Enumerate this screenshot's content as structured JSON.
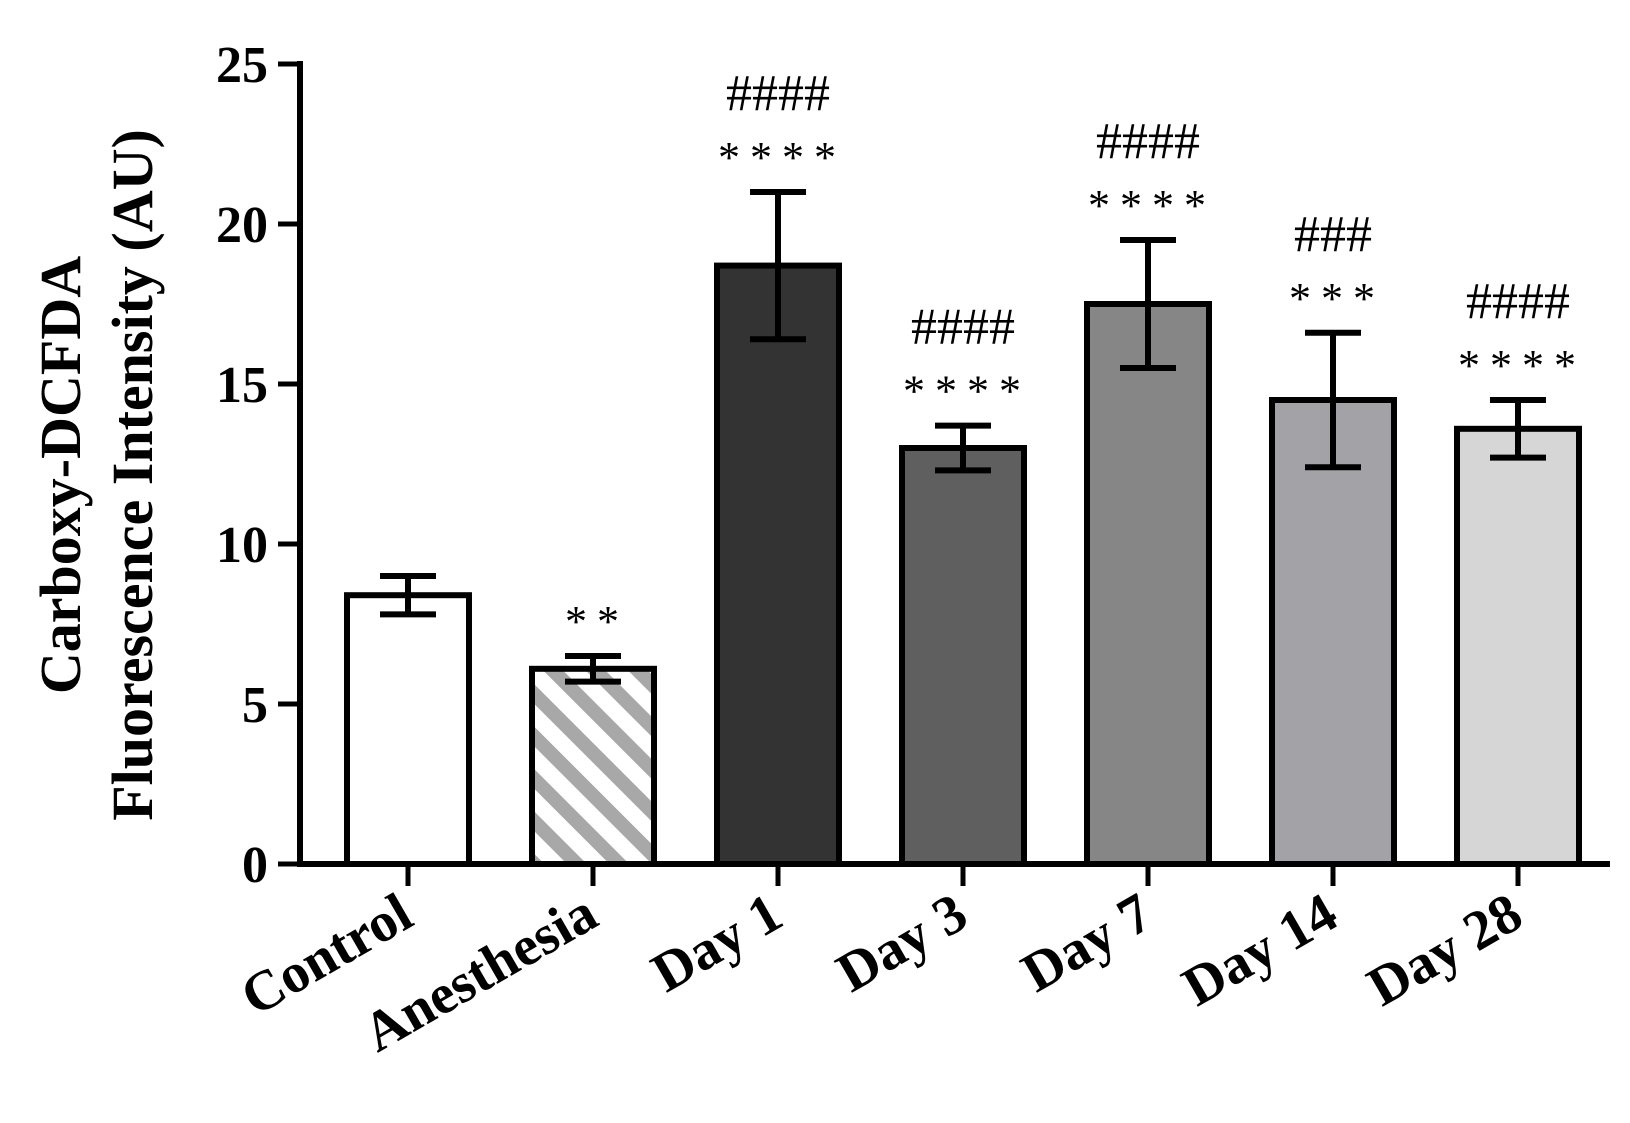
{
  "chart_data": {
    "type": "bar",
    "title": "",
    "xlabel": "",
    "ylabel_lines": [
      "Carboxy-DCFDA",
      "Fluorescence Intensity (AU)"
    ],
    "ylim": [
      0,
      25
    ],
    "yticks": [
      0,
      5,
      10,
      15,
      20,
      25
    ],
    "ytick_labels": [
      "0",
      "5",
      "10",
      "15",
      "20",
      "25"
    ],
    "categories": [
      "Control",
      "Anesthesia",
      "Day 1",
      "Day 3",
      "Day 7",
      "Day 14",
      "Day 28"
    ],
    "values": [
      8.4,
      6.1,
      18.7,
      13.0,
      17.5,
      14.5,
      13.6
    ],
    "errors": [
      0.6,
      0.4,
      2.3,
      0.7,
      2.0,
      2.1,
      0.9
    ],
    "fills": [
      "#ffffff",
      "hatch",
      "#333333",
      "#5f5f5f",
      "#868686",
      "#a3a3a7",
      "#d6d6d6"
    ],
    "significance_star": [
      "",
      "**",
      "****",
      "****",
      "****",
      "***",
      "****"
    ],
    "significance_hash": [
      "",
      "",
      "####",
      "####",
      "####",
      "###",
      "####"
    ],
    "grid": false,
    "legend": "none"
  }
}
